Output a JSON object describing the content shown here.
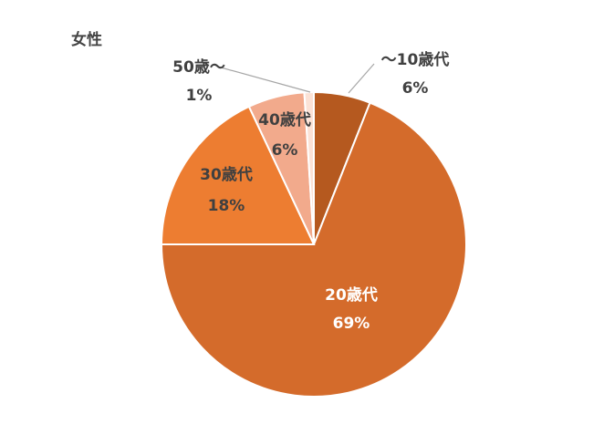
{
  "chart_data": {
    "type": "pie",
    "title": "女性",
    "categories": [
      "～10歳代",
      "20歳代",
      "30歳代",
      "40歳代",
      "50歳～"
    ],
    "values": [
      6,
      69,
      18,
      6,
      1
    ],
    "value_labels": [
      "6%",
      "69%",
      "18%",
      "6%",
      "1%"
    ],
    "colors": [
      "#b5591f",
      "#d46b2b",
      "#ed7d31",
      "#f2aa8c",
      "#fbe2d6"
    ]
  }
}
